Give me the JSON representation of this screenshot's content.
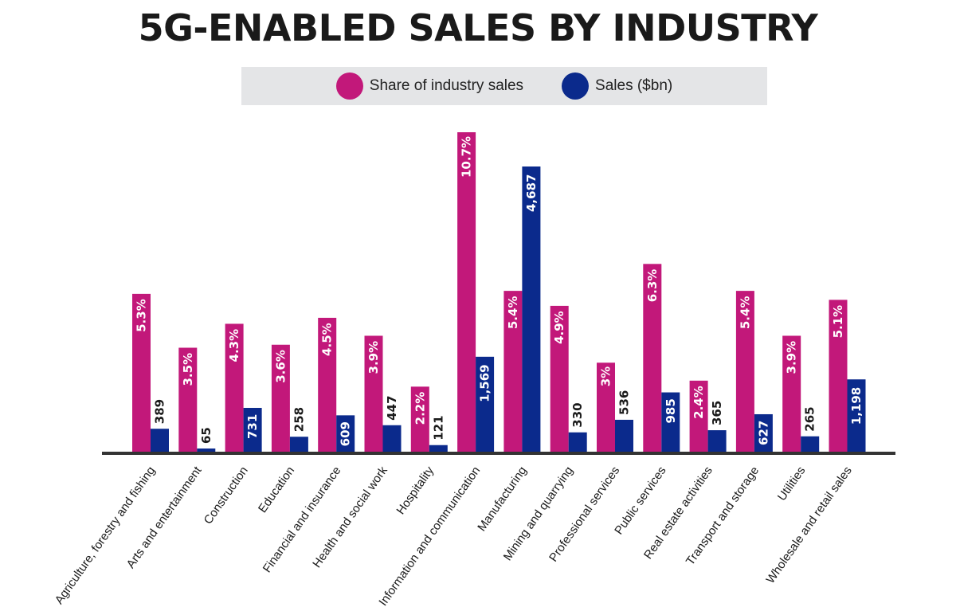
{
  "title": "5G-ENABLED SALES BY INDUSTRY",
  "colors": {
    "share": "#c2187a",
    "sales": "#0b2a8c",
    "axis": "#333333",
    "legend_bg": "#e4e5e7"
  },
  "legend": [
    {
      "label": "Share of industry sales",
      "color": "#c2187a"
    },
    {
      "label": "Sales ($bn)",
      "color": "#0b2a8c"
    }
  ],
  "chart_data": {
    "type": "bar",
    "categories": [
      "Agriculture, forestry and fishing",
      "Arts and entertainment",
      "Construction",
      "Education",
      "Financial and insurance",
      "Health and social work",
      "Hospitality",
      "Information and communication",
      "Manufacturing",
      "Mining and quarrying",
      "Professional services",
      "Public services",
      "Real estate activities",
      "Transport and storage",
      "Utilities",
      "Wholesale and retail sales"
    ],
    "series": [
      {
        "name": "Share of industry sales",
        "values": [
          5.3,
          3.5,
          4.3,
          3.6,
          4.5,
          3.9,
          2.2,
          10.7,
          5.4,
          4.9,
          3.0,
          6.3,
          2.4,
          5.4,
          3.9,
          5.1
        ],
        "labels": [
          "5.3%",
          "3.5%",
          "4.3%",
          "3.6%",
          "4.5%",
          "3.9%",
          "2.2%",
          "10.7%",
          "5.4%",
          "4.9%",
          "3%",
          "6.3%",
          "2.4%",
          "5.4%",
          "3.9%",
          "5.1%"
        ]
      },
      {
        "name": "Sales ($bn)",
        "values": [
          389,
          65,
          731,
          258,
          609,
          447,
          121,
          1569,
          4687,
          330,
          536,
          985,
          365,
          627,
          265,
          1198
        ],
        "labels": [
          "389",
          "65",
          "731",
          "258",
          "609",
          "447",
          "121",
          "1,569",
          "4,687",
          "330",
          "536",
          "985",
          "365",
          "627",
          "265",
          "1,198"
        ]
      }
    ],
    "legend_position": "top-center",
    "grid": false
  }
}
